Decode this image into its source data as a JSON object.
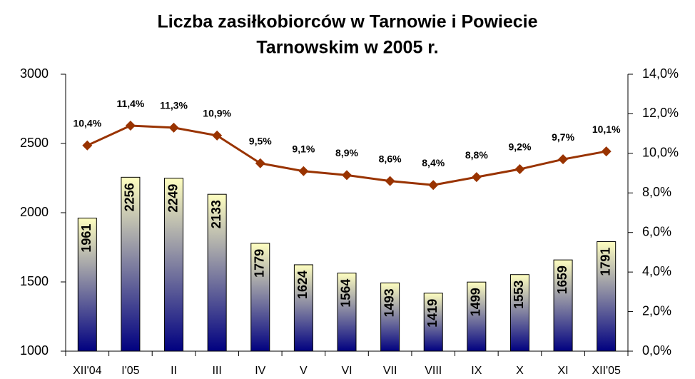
{
  "chart_data": {
    "type": "bar",
    "title": [
      "Liczba zasiłkobiorców w Tarnowie i Powiecie",
      "Tarnowskim w 2005 r."
    ],
    "categories": [
      "XII'04",
      "I'05",
      "II",
      "III",
      "IV",
      "V",
      "VI",
      "VII",
      "VIII",
      "IX",
      "X",
      "XI",
      "XII'05"
    ],
    "series": [
      {
        "type": "bar",
        "color": "#ffffc0",
        "color2": "#000080",
        "values": [
          1961,
          2256,
          2249,
          2133,
          1779,
          1624,
          1564,
          1493,
          1419,
          1499,
          1553,
          1659,
          1791
        ]
      },
      {
        "type": "line",
        "axis": "y2",
        "color": "#993300",
        "values": [
          10.4,
          11.4,
          11.3,
          10.9,
          9.5,
          9.1,
          8.9,
          8.6,
          8.4,
          8.8,
          9.2,
          9.7,
          10.1
        ],
        "value_labels": [
          "10,4%",
          "11,4%",
          "11,3%",
          "10,9%",
          "9,5%",
          "9,1%",
          "8,9%",
          "8,6%",
          "8,4%",
          "8,8%",
          "9,2%",
          "9,7%",
          "10,1%"
        ]
      }
    ],
    "ylim": [
      1000,
      3000
    ],
    "yticks": [
      1000,
      1500,
      2000,
      2500,
      3000
    ],
    "y2lim": [
      0,
      14
    ],
    "y2ticks": [
      {
        "value": 0,
        "label": "0,0%"
      },
      {
        "value": 2,
        "label": "2,0%"
      },
      {
        "value": 4,
        "label": "4,0%"
      },
      {
        "value": 6,
        "label": "6,0%"
      },
      {
        "value": 8,
        "label": "8,0%"
      },
      {
        "value": 10,
        "label": "10,0%"
      },
      {
        "value": 12,
        "label": "12,0%"
      },
      {
        "value": 14,
        "label": "14,0%"
      }
    ],
    "grid": false
  }
}
